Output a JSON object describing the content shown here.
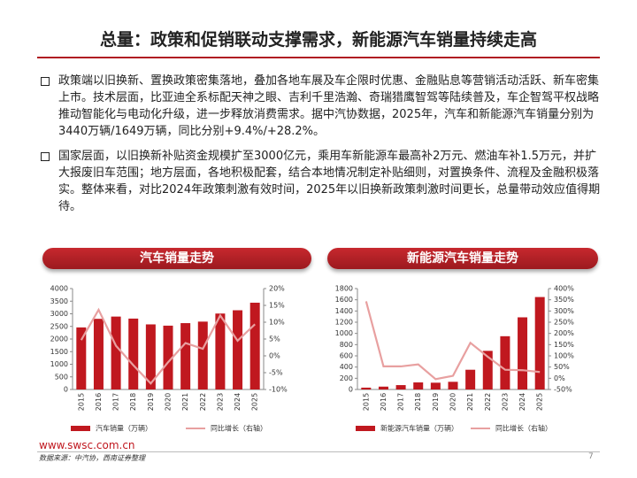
{
  "title": "总量：政策和促销联动支撑需求，新能源汽车销量持续走高",
  "bullets": [
    "政策端以旧换新、置换政策密集落地，叠加各地车展及车企限时优惠、金融贴息等营销活动活跃、新车密集上市。技术层面，比亚迪全系标配天神之眼、吉利千里浩瀚、奇瑞猎鹰智驾等陆续普及，车企智驾平权战略推动智能化与电动化升级，进一步释放消费需求。据中汽协数据，2025年，汽车和新能源汽车销量分别为3440万辆/1649万辆，同比分别+9.4%/+28.2%。",
    "国家层面，以旧换新补贴资金规模扩至3000亿元，乘用车新能源车最高补2万元、燃油车补1.5万元，并扩大报废旧车范围；地方层面，各地积极配套，结合本地情况制定补贴细则，对置换条件、流程及金融积极落实。整体来看，对比2024年政策刺激有效时间，2025年以旧换新政策刺激时间更长，总量带动效应值得期待。"
  ],
  "chart_data": [
    {
      "type": "bar",
      "title": "汽车销量走势",
      "categories": [
        "2015",
        "2016",
        "2017",
        "2018",
        "2019",
        "2020",
        "2021",
        "2022",
        "2023",
        "2024",
        "2025"
      ],
      "series": [
        {
          "name": "汽车销量（万辆）",
          "color": "#c0181f",
          "values": [
            2460,
            2800,
            2890,
            2810,
            2580,
            2530,
            2630,
            2690,
            3010,
            3140,
            3440
          ]
        },
        {
          "name": "同比增长（右轴）",
          "color": "#e8a0a0",
          "type": "line",
          "axis": "y2",
          "values": [
            4.7,
            13.7,
            3.0,
            -2.8,
            -8.2,
            -1.9,
            3.8,
            2.1,
            12.0,
            4.5,
            9.4
          ]
        }
      ],
      "ylim": [
        0,
        4000
      ],
      "yticks": [
        0,
        500,
        1000,
        1500,
        2000,
        2500,
        3000,
        3500,
        4000
      ],
      "y2lim": [
        -10,
        20
      ],
      "y2ticks": [
        {
          "value": -10,
          "label": "-10%"
        },
        {
          "value": -5,
          "label": "-5%"
        },
        {
          "value": 0,
          "label": "0%"
        },
        {
          "value": 5,
          "label": "5%"
        },
        {
          "value": 10,
          "label": "10%"
        },
        {
          "value": 15,
          "label": "15%"
        },
        {
          "value": 20,
          "label": "20%"
        }
      ]
    },
    {
      "type": "bar",
      "title": "新能源汽车销量走势",
      "categories": [
        "2015",
        "2016",
        "2017",
        "2018",
        "2019",
        "2020",
        "2021",
        "2022",
        "2023",
        "2024",
        "2025"
      ],
      "series": [
        {
          "name": "新能源汽车销量（万辆）",
          "color": "#c0181f",
          "values": [
            33,
            51,
            78,
            126,
            121,
            137,
            352,
            689,
            950,
            1287,
            1649
          ]
        },
        {
          "name": "同比增长（右轴）",
          "color": "#e8a0a0",
          "type": "line",
          "axis": "y2",
          "values": [
            343,
            53,
            53,
            62,
            -4,
            11,
            158,
            96,
            38,
            36,
            28
          ]
        }
      ],
      "ylim": [
        0,
        1800
      ],
      "yticks": [
        0,
        200,
        400,
        600,
        800,
        1000,
        1200,
        1400,
        1600,
        1800
      ],
      "y2lim": [
        -50,
        400
      ],
      "y2ticks": [
        {
          "value": -50,
          "label": "-50%"
        },
        {
          "value": 0,
          "label": "0%"
        },
        {
          "value": 50,
          "label": "50%"
        },
        {
          "value": 100,
          "label": "100%"
        },
        {
          "value": 150,
          "label": "150%"
        },
        {
          "value": 200,
          "label": "200%"
        },
        {
          "value": 250,
          "label": "250%"
        },
        {
          "value": 300,
          "label": "300%"
        },
        {
          "value": 350,
          "label": "350%"
        },
        {
          "value": 400,
          "label": "400%"
        }
      ]
    }
  ],
  "footer": {
    "website": "www.swsc.com.cn",
    "source": "数据来源：中汽协，西南证券整理",
    "page": "7"
  }
}
